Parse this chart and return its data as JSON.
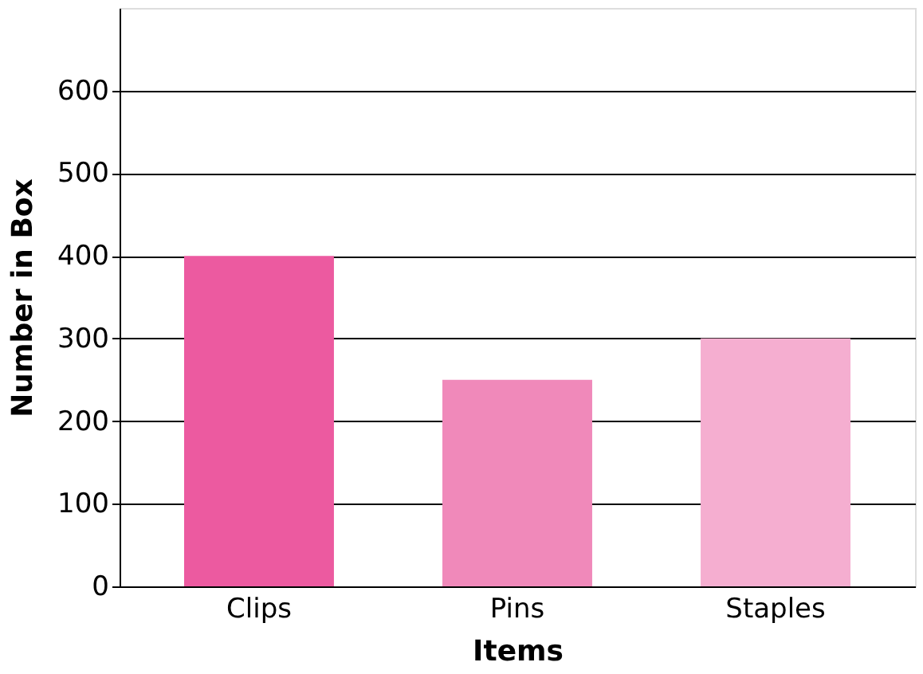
{
  "chart_data": {
    "type": "bar",
    "xlabel": "Items",
    "ylabel": "Number in Box",
    "categories": [
      "Clips",
      "Pins",
      "Staples"
    ],
    "values": [
      400,
      250,
      300
    ],
    "colors": [
      "#ec5aa0",
      "#f089ba",
      "#f5aed0"
    ],
    "ylim": [
      0,
      700
    ],
    "yticks": [
      0,
      100,
      200,
      300,
      400,
      500,
      600
    ],
    "grid": "y",
    "legend": false
  }
}
